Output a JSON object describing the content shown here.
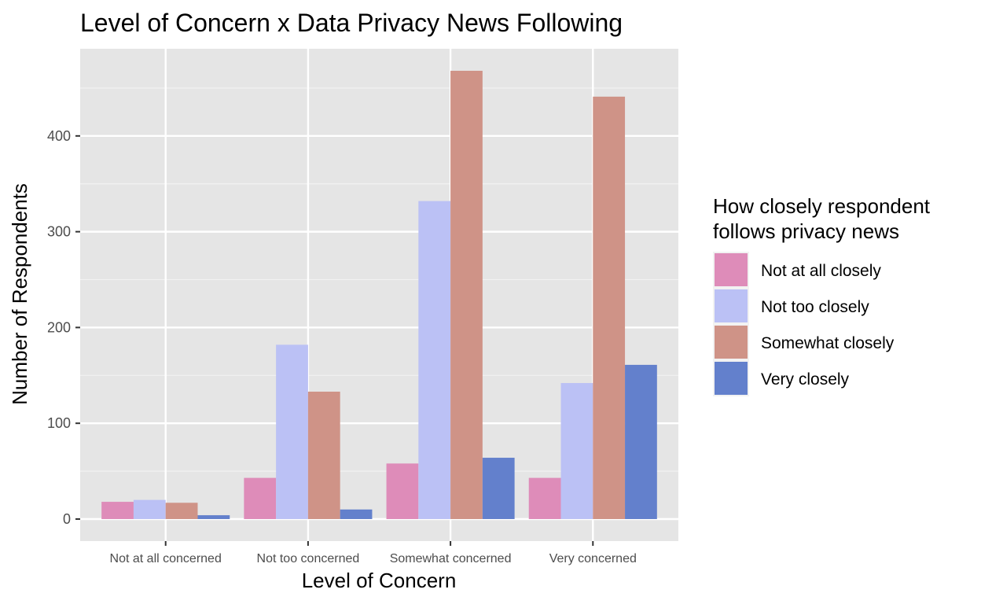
{
  "chart_data": {
    "type": "bar",
    "title": "Level of Concern x Data Privacy News Following",
    "xlabel": "Level of Concern",
    "ylabel": "Number of Respondents",
    "categories": [
      "Not at all concerned",
      "Not too concerned",
      "Somewhat concerned",
      "Very concerned"
    ],
    "series": [
      {
        "name": "Not at all closely",
        "color": "#de8cb9",
        "values": [
          18,
          43,
          58,
          43
        ]
      },
      {
        "name": "Not too closely",
        "color": "#bbc1f5",
        "values": [
          20,
          182,
          332,
          142
        ]
      },
      {
        "name": "Somewhat closely",
        "color": "#cf9387",
        "values": [
          17,
          133,
          468,
          441
        ]
      },
      {
        "name": "Very closely",
        "color": "#6380cc",
        "values": [
          4,
          10,
          64,
          161
        ]
      }
    ],
    "ylim": [
      -23,
      491
    ],
    "yticks": [
      0,
      100,
      200,
      300,
      400
    ],
    "grid": true,
    "legend": {
      "title_lines": [
        "How closely respondent",
        "follows privacy news"
      ],
      "position": "right"
    }
  }
}
